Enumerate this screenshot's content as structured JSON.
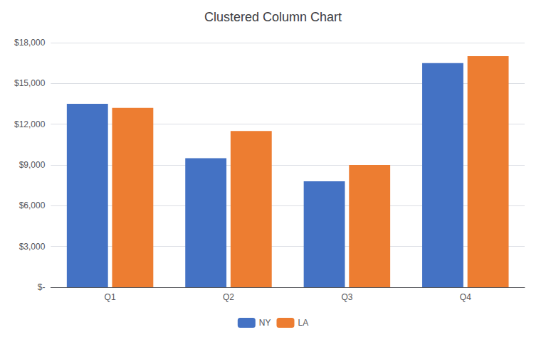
{
  "chart_data": {
    "type": "bar",
    "title": "Clustered Column Chart",
    "categories": [
      "Q1",
      "Q2",
      "Q3",
      "Q4"
    ],
    "series": [
      {
        "name": "NY",
        "values": [
          13500,
          9500,
          7800,
          16500
        ],
        "color": "#4472C4"
      },
      {
        "name": "LA",
        "values": [
          13200,
          11500,
          9000,
          17000
        ],
        "color": "#ED7D31"
      }
    ],
    "ylim": [
      0,
      18000
    ],
    "yticks": [
      {
        "value": 0,
        "label": "$-"
      },
      {
        "value": 3000,
        "label": "$3,000"
      },
      {
        "value": 6000,
        "label": "$6,000"
      },
      {
        "value": 9000,
        "label": "$9,000"
      },
      {
        "value": 12000,
        "label": "$12,000"
      },
      {
        "value": 15000,
        "label": "$15,000"
      },
      {
        "value": 18000,
        "label": "$18,000"
      }
    ],
    "grid": true,
    "legend": "bottom"
  }
}
